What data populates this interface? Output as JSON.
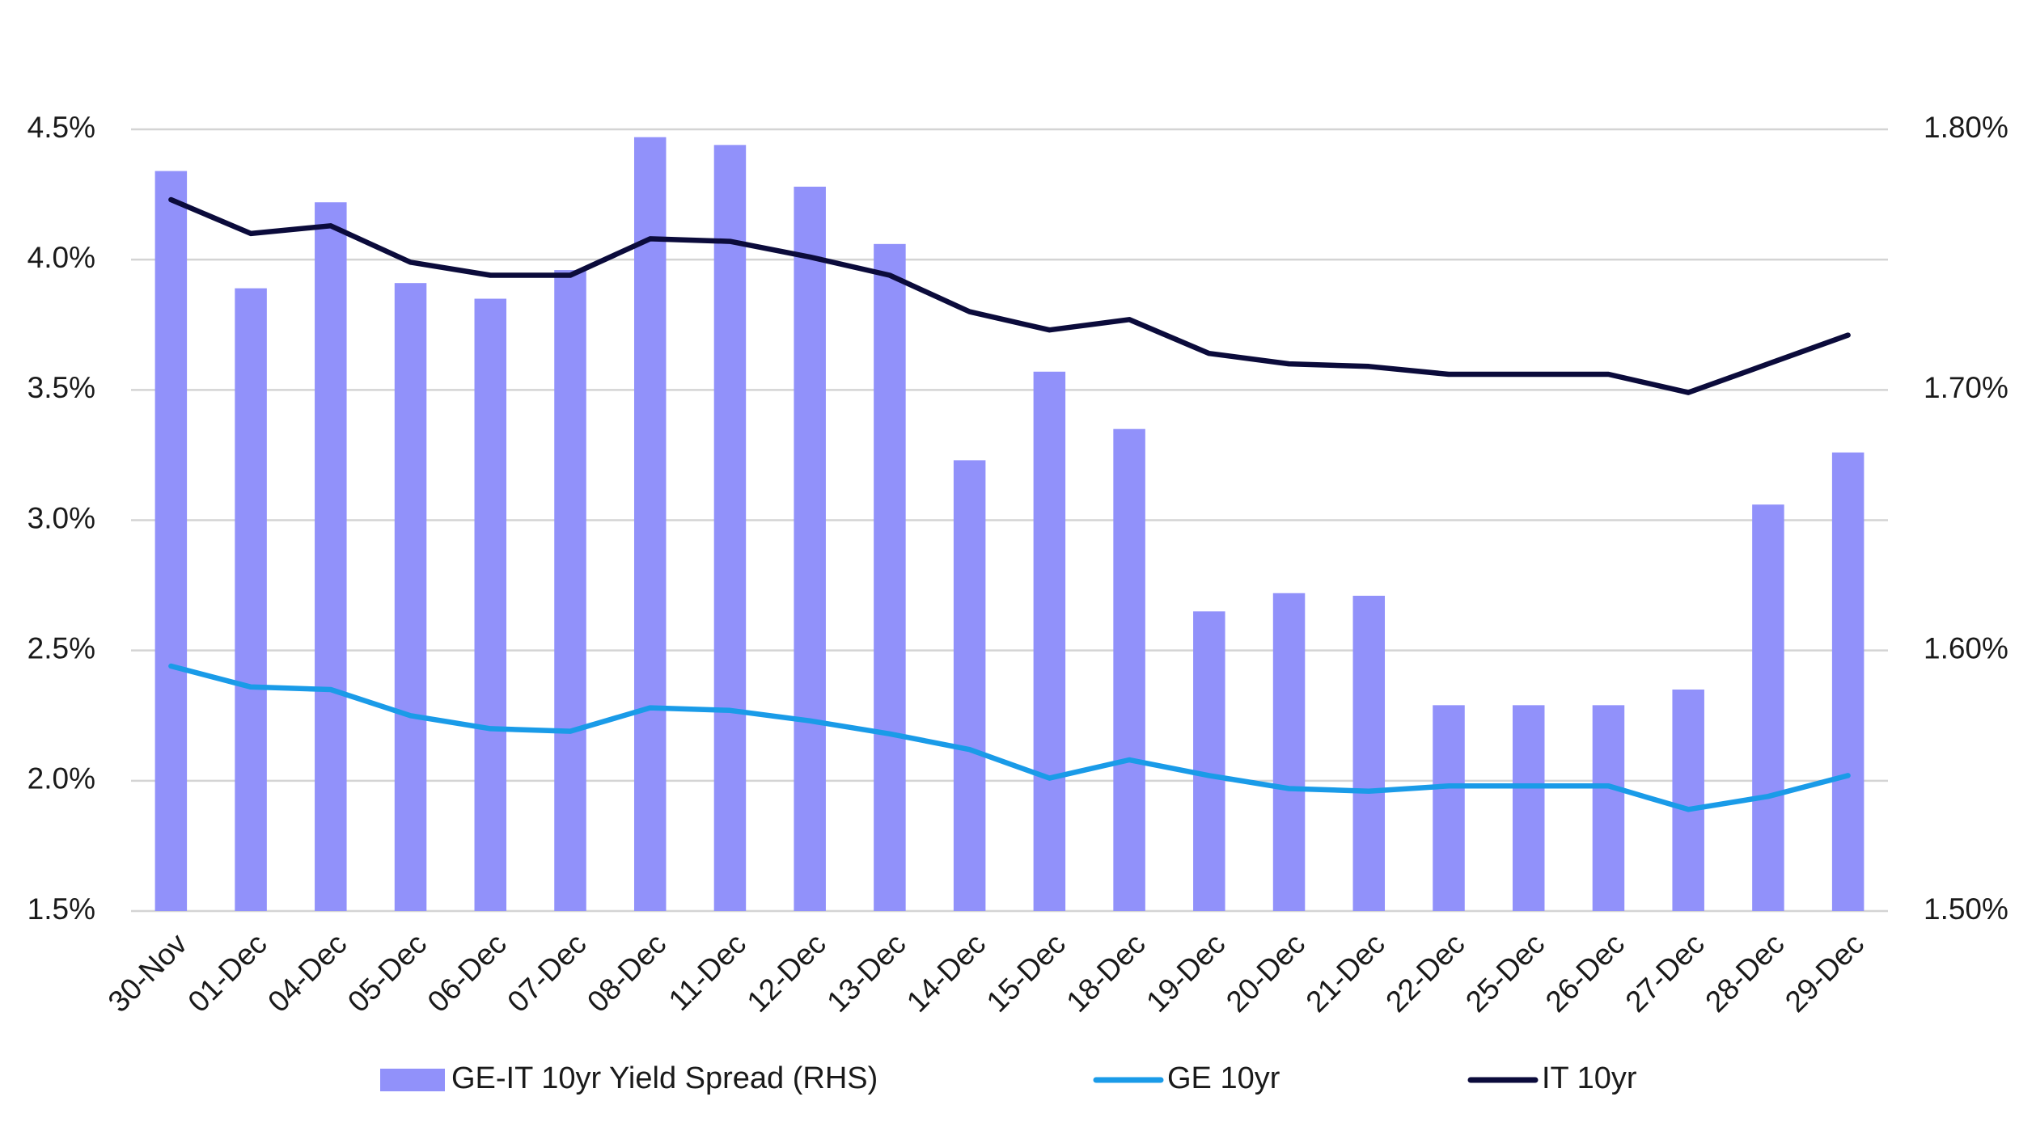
{
  "chart_data": {
    "type": "bar",
    "title": "",
    "xlabel": "",
    "ylabel": "",
    "categories": [
      "30-Nov",
      "01-Dec",
      "04-Dec",
      "05-Dec",
      "06-Dec",
      "07-Dec",
      "08-Dec",
      "11-Dec",
      "12-Dec",
      "13-Dec",
      "14-Dec",
      "15-Dec",
      "18-Dec",
      "19-Dec",
      "20-Dec",
      "21-Dec",
      "22-Dec",
      "25-Dec",
      "26-Dec",
      "27-Dec",
      "28-Dec",
      "29-Dec"
    ],
    "left_axis": {
      "ylim": [
        1.5,
        4.5
      ],
      "ticks": [
        1.5,
        2.0,
        2.5,
        3.0,
        3.5,
        4.0,
        4.5
      ],
      "tick_labels": [
        "1.5%",
        "2.0%",
        "2.5%",
        "3.0%",
        "3.5%",
        "4.0%",
        "4.5%"
      ]
    },
    "right_axis": {
      "ylim": [
        1.5,
        1.8
      ],
      "ticks": [
        1.5,
        1.6,
        1.7,
        1.8
      ],
      "tick_labels": [
        "1.50%",
        "1.60%",
        "1.70%",
        "1.80%"
      ]
    },
    "series": [
      {
        "name": "GE-IT 10yr Yield Spread (RHS)",
        "kind": "bar",
        "axis": "right",
        "color": "#9191fa",
        "values": [
          1.784,
          1.739,
          1.772,
          1.741,
          1.735,
          1.746,
          1.797,
          1.794,
          1.778,
          1.756,
          1.673,
          1.707,
          1.685,
          1.615,
          1.622,
          1.621,
          1.579,
          1.579,
          1.579,
          1.585,
          1.656,
          1.676
        ]
      },
      {
        "name": "GE 10yr",
        "kind": "line",
        "axis": "left",
        "color": "#1a9be8",
        "values": [
          2.44,
          2.36,
          2.35,
          2.25,
          2.2,
          2.19,
          2.28,
          2.27,
          2.23,
          2.18,
          2.12,
          2.01,
          2.08,
          2.02,
          1.97,
          1.96,
          1.98,
          1.98,
          1.98,
          1.89,
          1.94,
          2.02
        ]
      },
      {
        "name": "IT 10yr",
        "kind": "line",
        "axis": "left",
        "color": "#0b0b3b",
        "values": [
          4.23,
          4.1,
          4.13,
          3.99,
          3.94,
          3.94,
          4.08,
          4.07,
          4.01,
          3.94,
          3.8,
          3.73,
          3.77,
          3.64,
          3.6,
          3.59,
          3.56,
          3.56,
          3.56,
          3.49,
          3.6,
          3.71
        ]
      }
    ],
    "legend": {
      "position": "bottom",
      "entries": [
        "GE-IT 10yr Yield Spread (RHS)",
        "GE 10yr",
        "IT 10yr"
      ]
    },
    "grid": true
  }
}
